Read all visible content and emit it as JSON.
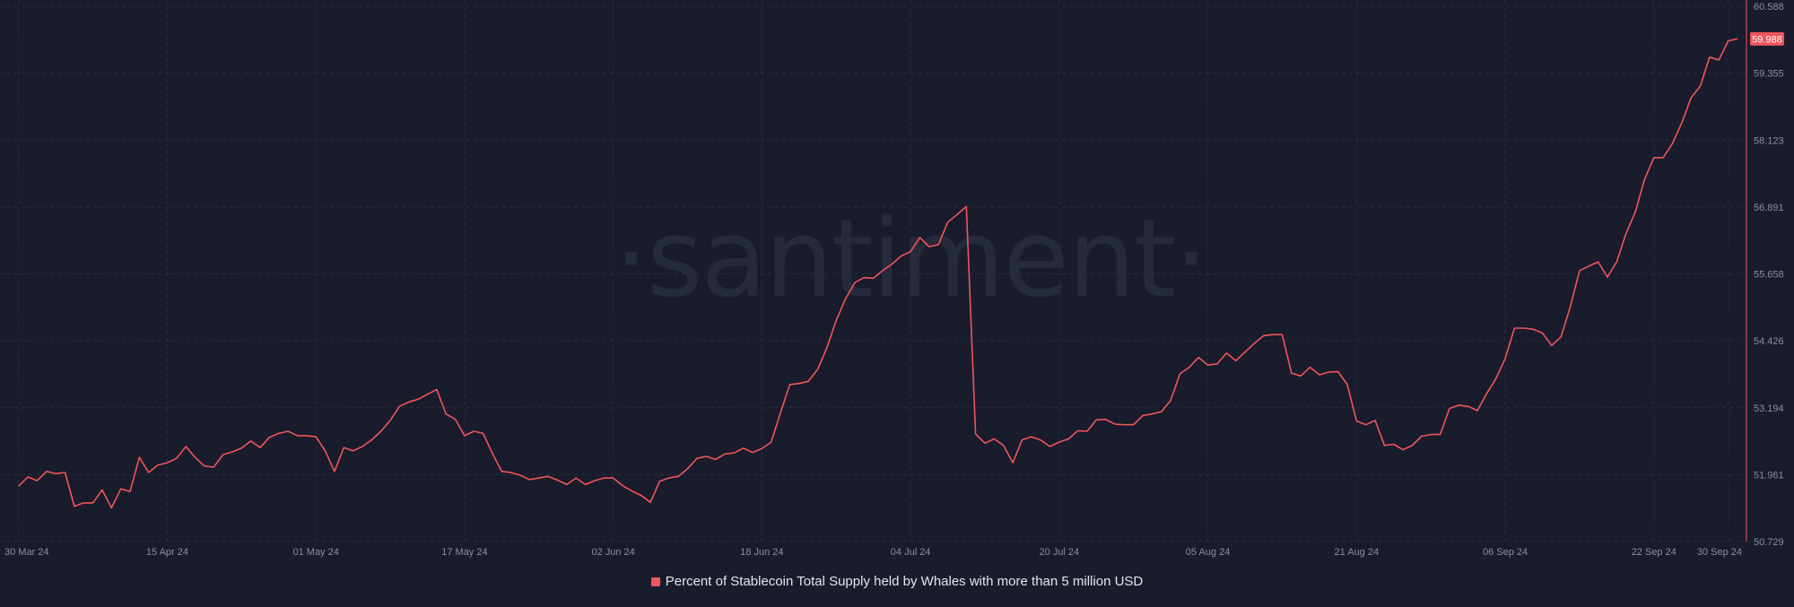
{
  "watermark": "·santiment·",
  "colors": {
    "background": "#181c2c",
    "grid": "#2a2f41",
    "series": "#f0555b",
    "axis_text": "#8b8f9e",
    "watermark": "#252a3c",
    "last_value_badge_text": "#ffffff"
  },
  "chart_data": {
    "type": "line",
    "title": "",
    "xlabel": "",
    "ylabel": "",
    "x_tick_labels": [
      "30 Mar 24",
      "15 Apr 24",
      "01 May 24",
      "17 May 24",
      "02 Jun 24",
      "18 Jun 24",
      "04 Jul 24",
      "20 Jul 24",
      "05 Aug 24",
      "21 Aug 24",
      "06 Sep 24",
      "22 Sep 24",
      "30 Sep 24"
    ],
    "x_range": [
      "2024-03-30",
      "2024-09-30"
    ],
    "y_tick_labels": [
      "60.588",
      "59.355",
      "58.123",
      "56.891",
      "55.658",
      "54.426",
      "53.194",
      "51.961",
      "50.729"
    ],
    "ylim": [
      50.729,
      60.588
    ],
    "y_axis_position": "right",
    "grid": true,
    "legend_position": "bottom-center",
    "last_value": "59.988",
    "series": [
      {
        "name": "Percent of Stablecoin Total Supply held by Whales with more than 5 million USD",
        "color": "#f0555b",
        "points": [
          [
            "2024-03-30",
            51.75
          ],
          [
            "2024-03-31",
            51.92
          ],
          [
            "2024-04-01",
            51.85
          ],
          [
            "2024-04-02",
            52.02
          ],
          [
            "2024-04-03",
            51.98
          ],
          [
            "2024-04-04",
            52.0
          ],
          [
            "2024-04-05",
            51.38
          ],
          [
            "2024-04-06",
            51.44
          ],
          [
            "2024-04-07",
            51.44
          ],
          [
            "2024-04-08",
            51.68
          ],
          [
            "2024-04-09",
            51.35
          ],
          [
            "2024-04-10",
            51.7
          ],
          [
            "2024-04-11",
            51.65
          ],
          [
            "2024-04-12",
            52.28
          ],
          [
            "2024-04-13",
            52.0
          ],
          [
            "2024-04-14",
            52.14
          ],
          [
            "2024-04-15",
            52.18
          ],
          [
            "2024-04-16",
            52.26
          ],
          [
            "2024-04-17",
            52.48
          ],
          [
            "2024-04-18",
            52.28
          ],
          [
            "2024-04-19",
            52.12
          ],
          [
            "2024-04-20",
            52.1
          ],
          [
            "2024-04-21",
            52.33
          ],
          [
            "2024-04-22",
            52.38
          ],
          [
            "2024-04-23",
            52.45
          ],
          [
            "2024-04-24",
            52.58
          ],
          [
            "2024-04-25",
            52.46
          ],
          [
            "2024-04-26",
            52.65
          ],
          [
            "2024-04-27",
            52.72
          ],
          [
            "2024-04-28",
            52.76
          ],
          [
            "2024-04-29",
            52.68
          ],
          [
            "2024-04-30",
            52.68
          ],
          [
            "2024-05-01",
            52.66
          ],
          [
            "2024-05-02",
            52.4
          ],
          [
            "2024-05-03",
            52.02
          ],
          [
            "2024-05-04",
            52.46
          ],
          [
            "2024-05-05",
            52.4
          ],
          [
            "2024-05-06",
            52.48
          ],
          [
            "2024-05-07",
            52.6
          ],
          [
            "2024-05-08",
            52.76
          ],
          [
            "2024-05-09",
            52.96
          ],
          [
            "2024-05-10",
            53.22
          ],
          [
            "2024-05-11",
            53.3
          ],
          [
            "2024-05-12",
            53.35
          ],
          [
            "2024-05-13",
            53.44
          ],
          [
            "2024-05-14",
            53.53
          ],
          [
            "2024-05-15",
            53.08
          ],
          [
            "2024-05-16",
            52.98
          ],
          [
            "2024-05-17",
            52.68
          ],
          [
            "2024-05-18",
            52.76
          ],
          [
            "2024-05-19",
            52.72
          ],
          [
            "2024-05-20",
            52.35
          ],
          [
            "2024-05-21",
            52.02
          ],
          [
            "2024-05-22",
            52.0
          ],
          [
            "2024-05-23",
            51.95
          ],
          [
            "2024-05-24",
            51.87
          ],
          [
            "2024-05-25",
            51.9
          ],
          [
            "2024-05-26",
            51.93
          ],
          [
            "2024-05-27",
            51.86
          ],
          [
            "2024-05-28",
            51.78
          ],
          [
            "2024-05-29",
            51.9
          ],
          [
            "2024-05-30",
            51.78
          ],
          [
            "2024-05-31",
            51.85
          ],
          [
            "2024-06-01",
            51.9
          ],
          [
            "2024-06-02",
            51.9
          ],
          [
            "2024-06-03",
            51.76
          ],
          [
            "2024-06-04",
            51.66
          ],
          [
            "2024-06-05",
            51.58
          ],
          [
            "2024-06-06",
            51.45
          ],
          [
            "2024-06-07",
            51.84
          ],
          [
            "2024-06-08",
            51.9
          ],
          [
            "2024-06-09",
            51.93
          ],
          [
            "2024-06-10",
            52.07
          ],
          [
            "2024-06-11",
            52.26
          ],
          [
            "2024-06-12",
            52.3
          ],
          [
            "2024-06-13",
            52.24
          ],
          [
            "2024-06-14",
            52.34
          ],
          [
            "2024-06-15",
            52.36
          ],
          [
            "2024-06-16",
            52.45
          ],
          [
            "2024-06-17",
            52.37
          ],
          [
            "2024-06-18",
            52.44
          ],
          [
            "2024-06-19",
            52.56
          ],
          [
            "2024-06-20",
            53.1
          ],
          [
            "2024-06-21",
            53.62
          ],
          [
            "2024-06-22",
            53.64
          ],
          [
            "2024-06-23",
            53.68
          ],
          [
            "2024-06-24",
            53.9
          ],
          [
            "2024-06-25",
            54.3
          ],
          [
            "2024-06-26",
            54.8
          ],
          [
            "2024-06-27",
            55.2
          ],
          [
            "2024-06-28",
            55.5
          ],
          [
            "2024-06-29",
            55.59
          ],
          [
            "2024-06-30",
            55.58
          ],
          [
            "2024-07-01",
            55.72
          ],
          [
            "2024-07-02",
            55.84
          ],
          [
            "2024-07-03",
            55.99
          ],
          [
            "2024-07-04",
            56.07
          ],
          [
            "2024-07-05",
            56.33
          ],
          [
            "2024-07-06",
            56.16
          ],
          [
            "2024-07-07",
            56.2
          ],
          [
            "2024-07-08",
            56.61
          ],
          [
            "2024-07-09",
            56.75
          ],
          [
            "2024-07-10",
            56.9
          ],
          [
            "2024-07-11",
            52.71
          ],
          [
            "2024-07-12",
            52.54
          ],
          [
            "2024-07-13",
            52.62
          ],
          [
            "2024-07-14",
            52.5
          ],
          [
            "2024-07-15",
            52.18
          ],
          [
            "2024-07-16",
            52.6
          ],
          [
            "2024-07-17",
            52.66
          ],
          [
            "2024-07-18",
            52.6
          ],
          [
            "2024-07-19",
            52.48
          ],
          [
            "2024-07-20",
            52.56
          ],
          [
            "2024-07-21",
            52.62
          ],
          [
            "2024-07-22",
            52.77
          ],
          [
            "2024-07-23",
            52.76
          ],
          [
            "2024-07-24",
            52.97
          ],
          [
            "2024-07-25",
            52.98
          ],
          [
            "2024-07-26",
            52.89
          ],
          [
            "2024-07-27",
            52.88
          ],
          [
            "2024-07-28",
            52.88
          ],
          [
            "2024-07-29",
            53.05
          ],
          [
            "2024-07-30",
            53.08
          ],
          [
            "2024-07-31",
            53.12
          ],
          [
            "2024-08-01",
            53.33
          ],
          [
            "2024-08-02",
            53.82
          ],
          [
            "2024-08-03",
            53.94
          ],
          [
            "2024-08-04",
            54.12
          ],
          [
            "2024-08-05",
            53.98
          ],
          [
            "2024-08-06",
            54.0
          ],
          [
            "2024-08-07",
            54.2
          ],
          [
            "2024-08-08",
            54.06
          ],
          [
            "2024-08-09",
            54.22
          ],
          [
            "2024-08-10",
            54.38
          ],
          [
            "2024-08-11",
            54.52
          ],
          [
            "2024-08-12",
            54.54
          ],
          [
            "2024-08-13",
            54.54
          ],
          [
            "2024-08-14",
            53.83
          ],
          [
            "2024-08-15",
            53.78
          ],
          [
            "2024-08-16",
            53.94
          ],
          [
            "2024-08-17",
            53.8
          ],
          [
            "2024-08-18",
            53.85
          ],
          [
            "2024-08-19",
            53.86
          ],
          [
            "2024-08-20",
            53.62
          ],
          [
            "2024-08-21",
            52.95
          ],
          [
            "2024-08-22",
            52.88
          ],
          [
            "2024-08-23",
            52.96
          ],
          [
            "2024-08-24",
            52.5
          ],
          [
            "2024-08-25",
            52.52
          ],
          [
            "2024-08-26",
            52.42
          ],
          [
            "2024-08-27",
            52.5
          ],
          [
            "2024-08-28",
            52.67
          ],
          [
            "2024-08-29",
            52.7
          ],
          [
            "2024-08-30",
            52.7
          ],
          [
            "2024-08-31",
            53.18
          ],
          [
            "2024-09-01",
            53.24
          ],
          [
            "2024-09-02",
            53.22
          ],
          [
            "2024-09-03",
            53.14
          ],
          [
            "2024-09-04",
            53.45
          ],
          [
            "2024-09-05",
            53.73
          ],
          [
            "2024-09-06",
            54.1
          ],
          [
            "2024-09-07",
            54.66
          ],
          [
            "2024-09-08",
            54.66
          ],
          [
            "2024-09-09",
            54.64
          ],
          [
            "2024-09-10",
            54.57
          ],
          [
            "2024-09-11",
            54.34
          ],
          [
            "2024-09-12",
            54.5
          ],
          [
            "2024-09-13",
            55.05
          ],
          [
            "2024-09-14",
            55.72
          ],
          [
            "2024-09-15",
            55.8
          ],
          [
            "2024-09-16",
            55.88
          ],
          [
            "2024-09-17",
            55.6
          ],
          [
            "2024-09-18",
            55.88
          ],
          [
            "2024-09-19",
            56.4
          ],
          [
            "2024-09-20",
            56.8
          ],
          [
            "2024-09-21",
            57.4
          ],
          [
            "2024-09-22",
            57.8
          ],
          [
            "2024-09-23",
            57.8
          ],
          [
            "2024-09-24",
            58.06
          ],
          [
            "2024-09-25",
            58.44
          ],
          [
            "2024-09-26",
            58.9
          ],
          [
            "2024-09-27",
            59.12
          ],
          [
            "2024-09-28",
            59.65
          ],
          [
            "2024-09-29",
            59.6
          ],
          [
            "2024-09-30",
            59.95
          ],
          [
            "2024-10-01",
            59.99
          ]
        ]
      }
    ]
  }
}
